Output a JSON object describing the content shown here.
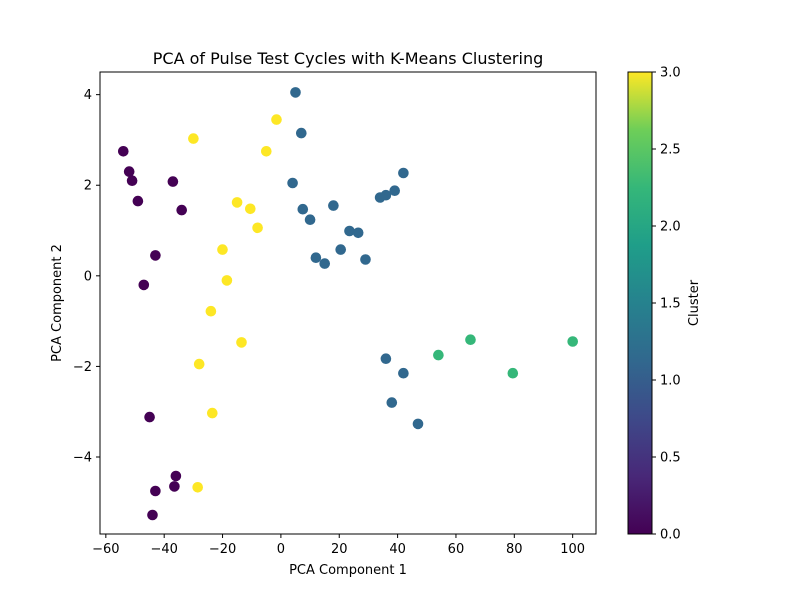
{
  "chart_data": {
    "type": "scatter",
    "title": "PCA of Pulse Test Cycles with K-Means Clustering",
    "xlabel": "PCA Component 1",
    "ylabel": "PCA Component 2",
    "xlim": [
      -62,
      108
    ],
    "ylim": [
      -5.7,
      4.5
    ],
    "xticks": [
      -60,
      -40,
      -20,
      0,
      20,
      40,
      60,
      80,
      100
    ],
    "xtick_labels": [
      "−60",
      "−40",
      "−20",
      "0",
      "20",
      "40",
      "60",
      "80",
      "100"
    ],
    "yticks": [
      -4,
      -2,
      0,
      2,
      4
    ],
    "ytick_labels": [
      "−4",
      "−2",
      "0",
      "2",
      "4"
    ],
    "grid": false,
    "colorbar": {
      "label": "Cluster",
      "colormap": "viridis",
      "range": [
        0,
        3
      ],
      "ticks": [
        0,
        0.5,
        1,
        1.5,
        2,
        2.5,
        3
      ],
      "tick_labels": [
        "0.0",
        "0.5",
        "1.0",
        "1.5",
        "2.0",
        "2.5",
        "3.0"
      ]
    },
    "cluster_colors": {
      "0": "#440154",
      "1": "#31688e",
      "2": "#35b779",
      "3": "#fde725"
    },
    "points": [
      {
        "x": -54,
        "y": 2.75,
        "cluster": 0
      },
      {
        "x": -52,
        "y": 2.3,
        "cluster": 0
      },
      {
        "x": -51,
        "y": 2.1,
        "cluster": 0
      },
      {
        "x": -49,
        "y": 1.65,
        "cluster": 0
      },
      {
        "x": -37,
        "y": 2.08,
        "cluster": 0
      },
      {
        "x": -34,
        "y": 1.45,
        "cluster": 0
      },
      {
        "x": -43,
        "y": 0.45,
        "cluster": 0
      },
      {
        "x": -47,
        "y": -0.2,
        "cluster": 0
      },
      {
        "x": -45,
        "y": -3.12,
        "cluster": 0
      },
      {
        "x": -36,
        "y": -4.42,
        "cluster": 0
      },
      {
        "x": -36.5,
        "y": -4.65,
        "cluster": 0
      },
      {
        "x": -43,
        "y": -4.75,
        "cluster": 0
      },
      {
        "x": -44,
        "y": -5.28,
        "cluster": 0
      },
      {
        "x": 5,
        "y": 4.05,
        "cluster": 1
      },
      {
        "x": 7,
        "y": 3.15,
        "cluster": 1
      },
      {
        "x": 42,
        "y": 2.27,
        "cluster": 1
      },
      {
        "x": 4,
        "y": 2.05,
        "cluster": 1
      },
      {
        "x": 39,
        "y": 1.88,
        "cluster": 1
      },
      {
        "x": 36,
        "y": 1.78,
        "cluster": 1
      },
      {
        "x": 34,
        "y": 1.73,
        "cluster": 1
      },
      {
        "x": 18,
        "y": 1.55,
        "cluster": 1
      },
      {
        "x": 7.5,
        "y": 1.47,
        "cluster": 1
      },
      {
        "x": 10,
        "y": 1.24,
        "cluster": 1
      },
      {
        "x": 23.5,
        "y": 0.99,
        "cluster": 1
      },
      {
        "x": 26.5,
        "y": 0.95,
        "cluster": 1
      },
      {
        "x": 20.5,
        "y": 0.58,
        "cluster": 1
      },
      {
        "x": 12,
        "y": 0.4,
        "cluster": 1
      },
      {
        "x": 15,
        "y": 0.27,
        "cluster": 1
      },
      {
        "x": 29,
        "y": 0.36,
        "cluster": 1
      },
      {
        "x": 36,
        "y": -1.83,
        "cluster": 1
      },
      {
        "x": 42,
        "y": -2.15,
        "cluster": 1
      },
      {
        "x": 38,
        "y": -2.8,
        "cluster": 1
      },
      {
        "x": 47,
        "y": -3.27,
        "cluster": 1
      },
      {
        "x": 54,
        "y": -1.75,
        "cluster": 2
      },
      {
        "x": 65,
        "y": -1.41,
        "cluster": 2
      },
      {
        "x": 79.5,
        "y": -2.15,
        "cluster": 2
      },
      {
        "x": 100,
        "y": -1.45,
        "cluster": 2
      },
      {
        "x": -30,
        "y": 3.03,
        "cluster": 3
      },
      {
        "x": -1.5,
        "y": 3.45,
        "cluster": 3
      },
      {
        "x": -5,
        "y": 2.75,
        "cluster": 3
      },
      {
        "x": -15,
        "y": 1.62,
        "cluster": 3
      },
      {
        "x": -10.5,
        "y": 1.48,
        "cluster": 3
      },
      {
        "x": -8,
        "y": 1.06,
        "cluster": 3
      },
      {
        "x": -20,
        "y": 0.58,
        "cluster": 3
      },
      {
        "x": -18.5,
        "y": -0.1,
        "cluster": 3
      },
      {
        "x": -24,
        "y": -0.78,
        "cluster": 3
      },
      {
        "x": -13.5,
        "y": -1.47,
        "cluster": 3
      },
      {
        "x": -28,
        "y": -1.95,
        "cluster": 3
      },
      {
        "x": -23.5,
        "y": -3.03,
        "cluster": 3
      },
      {
        "x": -28.5,
        "y": -4.67,
        "cluster": 3
      }
    ]
  }
}
